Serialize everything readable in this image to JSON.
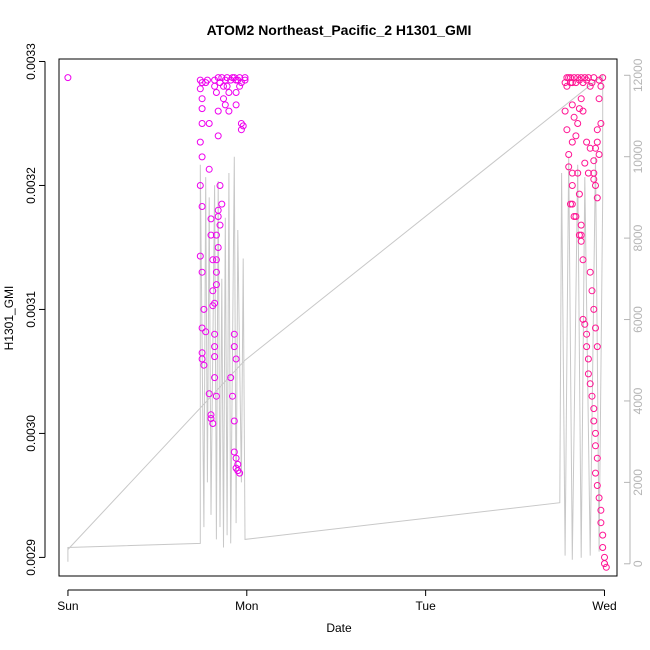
{
  "chart_data": {
    "type": "scatter",
    "title": "ATOM2 Northeast_Pacific_2 H1301_GMI",
    "xlabel": "Date",
    "ylabel": "H1301_GMI",
    "x_ticks": [
      "Sun",
      "Mon",
      "Tue",
      "Wed"
    ],
    "x_range_days": [
      -0.05,
      3.07
    ],
    "y_left": {
      "ticks": [
        "0.0029",
        "0.0030",
        "0.0031",
        "0.0032",
        "0.0033"
      ],
      "tick_values": [
        0.0029,
        0.003,
        0.0031,
        0.0032,
        0.0033
      ],
      "range": [
        0.002885,
        0.003302
      ]
    },
    "y_right": {
      "ticks": [
        "0",
        "2000",
        "4000",
        "6000",
        "8000",
        "10000",
        "12000"
      ],
      "tick_values": [
        0,
        2000,
        4000,
        6000,
        8000,
        10000,
        12000
      ],
      "range": [
        -300,
        12400
      ]
    },
    "colors": {
      "points": "#ee00ee",
      "points_late": "#ff1493",
      "altitude_line": "#c8c8c8"
    },
    "series": [
      {
        "role": "points",
        "axis": "left",
        "points": [
          [
            0.0,
            0.003287
          ],
          [
            0.74,
            0.003285
          ],
          [
            0.74,
            0.003278
          ],
          [
            0.75,
            0.003283
          ],
          [
            0.75,
            0.00327
          ],
          [
            0.75,
            0.003262
          ],
          [
            0.75,
            0.00325
          ],
          [
            0.74,
            0.003235
          ],
          [
            0.75,
            0.003223
          ],
          [
            0.74,
            0.0032
          ],
          [
            0.75,
            0.003183
          ],
          [
            0.74,
            0.003143
          ],
          [
            0.75,
            0.00313
          ],
          [
            0.76,
            0.0031
          ],
          [
            0.75,
            0.003085
          ],
          [
            0.75,
            0.003065
          ],
          [
            0.75,
            0.00306
          ],
          [
            0.76,
            0.003055
          ],
          [
            0.77,
            0.003082
          ],
          [
            0.77,
            0.003283
          ],
          [
            0.78,
            0.003285
          ],
          [
            0.79,
            0.00325
          ],
          [
            0.79,
            0.003213
          ],
          [
            0.8,
            0.003173
          ],
          [
            0.8,
            0.00316
          ],
          [
            0.81,
            0.00314
          ],
          [
            0.81,
            0.003115
          ],
          [
            0.81,
            0.003103
          ],
          [
            0.79,
            0.003032
          ],
          [
            0.8,
            0.003015
          ],
          [
            0.8,
            0.003012
          ],
          [
            0.81,
            0.003008
          ],
          [
            0.82,
            0.00328
          ],
          [
            0.82,
            0.003285
          ],
          [
            0.83,
            0.003275
          ],
          [
            0.84,
            0.00326
          ],
          [
            0.84,
            0.00324
          ],
          [
            0.85,
            0.0032
          ],
          [
            0.86,
            0.003185
          ],
          [
            0.84,
            0.00318
          ],
          [
            0.84,
            0.003175
          ],
          [
            0.85,
            0.003168
          ],
          [
            0.83,
            0.00316
          ],
          [
            0.84,
            0.00315
          ],
          [
            0.83,
            0.00314
          ],
          [
            0.83,
            0.00313
          ],
          [
            0.83,
            0.00312
          ],
          [
            0.82,
            0.003105
          ],
          [
            0.82,
            0.00308
          ],
          [
            0.82,
            0.00307
          ],
          [
            0.82,
            0.003062
          ],
          [
            0.82,
            0.003045
          ],
          [
            0.83,
            0.00303
          ],
          [
            0.84,
            0.003287
          ],
          [
            0.85,
            0.003283
          ],
          [
            0.86,
            0.003287
          ],
          [
            0.87,
            0.00328
          ],
          [
            0.87,
            0.00327
          ],
          [
            0.88,
            0.003265
          ],
          [
            0.88,
            0.003285
          ],
          [
            0.89,
            0.003287
          ],
          [
            0.89,
            0.00328
          ],
          [
            0.9,
            0.003275
          ],
          [
            0.9,
            0.00326
          ],
          [
            0.91,
            0.003285
          ],
          [
            0.92,
            0.003287
          ],
          [
            0.93,
            0.003287
          ],
          [
            0.94,
            0.003285
          ],
          [
            0.94,
            0.003275
          ],
          [
            0.94,
            0.003265
          ],
          [
            0.95,
            0.003285
          ],
          [
            0.96,
            0.003287
          ],
          [
            0.96,
            0.00328
          ],
          [
            0.97,
            0.003283
          ],
          [
            0.97,
            0.00325
          ],
          [
            0.97,
            0.003245
          ],
          [
            0.98,
            0.003248
          ],
          [
            0.99,
            0.003285
          ],
          [
            0.99,
            0.003287
          ],
          [
            0.91,
            0.003045
          ],
          [
            0.92,
            0.00303
          ],
          [
            0.93,
            0.00301
          ],
          [
            0.93,
            0.002985
          ],
          [
            0.94,
            0.00298
          ],
          [
            0.95,
            0.002975
          ],
          [
            0.94,
            0.002972
          ],
          [
            0.95,
            0.00297
          ],
          [
            0.96,
            0.002968
          ],
          [
            0.93,
            0.00308
          ],
          [
            0.93,
            0.00307
          ],
          [
            0.94,
            0.00306
          ],
          [
            2.78,
            0.003283
          ],
          [
            2.79,
            0.003287
          ],
          [
            2.79,
            0.00328
          ],
          [
            2.8,
            0.003287
          ],
          [
            2.81,
            0.003283
          ],
          [
            2.81,
            0.003287
          ],
          [
            2.82,
            0.003283
          ],
          [
            2.83,
            0.003287
          ],
          [
            2.84,
            0.003283
          ],
          [
            2.85,
            0.003287
          ],
          [
            2.86,
            0.003285
          ],
          [
            2.87,
            0.003287
          ],
          [
            2.88,
            0.003283
          ],
          [
            2.89,
            0.003287
          ],
          [
            2.9,
            0.003285
          ],
          [
            2.91,
            0.003287
          ],
          [
            2.92,
            0.00328
          ],
          [
            2.93,
            0.003283
          ],
          [
            2.94,
            0.003287
          ],
          [
            2.78,
            0.00326
          ],
          [
            2.79,
            0.003245
          ],
          [
            2.8,
            0.003225
          ],
          [
            2.8,
            0.003215
          ],
          [
            2.82,
            0.003235
          ],
          [
            2.82,
            0.00321
          ],
          [
            2.82,
            0.003265
          ],
          [
            2.83,
            0.003255
          ],
          [
            2.84,
            0.00324
          ],
          [
            2.85,
            0.00325
          ],
          [
            2.86,
            0.003262
          ],
          [
            2.87,
            0.00327
          ],
          [
            2.88,
            0.00326
          ],
          [
            2.81,
            0.003185
          ],
          [
            2.82,
            0.003185
          ],
          [
            2.82,
            0.0032
          ],
          [
            2.83,
            0.003175
          ],
          [
            2.84,
            0.003175
          ],
          [
            2.85,
            0.00321
          ],
          [
            2.86,
            0.003193
          ],
          [
            2.87,
            0.003168
          ],
          [
            2.87,
            0.00316
          ],
          [
            2.87,
            0.003155
          ],
          [
            2.86,
            0.00316
          ],
          [
            2.88,
            0.00314
          ],
          [
            2.89,
            0.003218
          ],
          [
            2.9,
            0.003235
          ],
          [
            2.91,
            0.00321
          ],
          [
            2.92,
            0.00323
          ],
          [
            2.94,
            0.00322
          ],
          [
            2.94,
            0.00321
          ],
          [
            2.94,
            0.003205
          ],
          [
            2.95,
            0.0032
          ],
          [
            2.95,
            0.00323
          ],
          [
            2.96,
            0.003235
          ],
          [
            2.96,
            0.003245
          ],
          [
            2.97,
            0.00327
          ],
          [
            2.97,
            0.003285
          ],
          [
            2.98,
            0.00328
          ],
          [
            2.99,
            0.003287
          ],
          [
            2.98,
            0.00325
          ],
          [
            2.97,
            0.003225
          ],
          [
            2.96,
            0.00319
          ],
          [
            2.88,
            0.003092
          ],
          [
            2.89,
            0.003088
          ],
          [
            2.9,
            0.00308
          ],
          [
            2.9,
            0.00307
          ],
          [
            2.91,
            0.00306
          ],
          [
            2.91,
            0.003048
          ],
          [
            2.92,
            0.00304
          ],
          [
            2.93,
            0.00303
          ],
          [
            2.94,
            0.00302
          ],
          [
            2.94,
            0.00301
          ],
          [
            2.95,
            0.003
          ],
          [
            2.95,
            0.00299
          ],
          [
            2.96,
            0.00298
          ],
          [
            2.95,
            0.002968
          ],
          [
            2.96,
            0.002958
          ],
          [
            2.97,
            0.002948
          ],
          [
            2.98,
            0.002938
          ],
          [
            2.98,
            0.002928
          ],
          [
            2.99,
            0.002918
          ],
          [
            2.99,
            0.002908
          ],
          [
            3.0,
            0.0029
          ],
          [
            3.0,
            0.002895
          ],
          [
            3.01,
            0.002892
          ],
          [
            2.92,
            0.00313
          ],
          [
            2.93,
            0.003115
          ],
          [
            2.94,
            0.0031
          ],
          [
            2.95,
            0.003085
          ],
          [
            2.96,
            0.00307
          ]
        ]
      },
      {
        "role": "altitude_line",
        "axis": "right",
        "points": [
          [
            0.0,
            50
          ],
          [
            0.0,
            400
          ],
          [
            0.74,
            500
          ],
          [
            0.74,
            9800
          ],
          [
            0.76,
            900
          ],
          [
            0.77,
            9500
          ],
          [
            0.78,
            2000
          ],
          [
            0.79,
            9000
          ],
          [
            0.8,
            1200
          ],
          [
            0.82,
            9300
          ],
          [
            0.83,
            600
          ],
          [
            0.84,
            9400
          ],
          [
            0.85,
            900
          ],
          [
            0.86,
            7000
          ],
          [
            0.87,
            400
          ],
          [
            0.88,
            8500
          ],
          [
            0.89,
            700
          ],
          [
            0.9,
            9600
          ],
          [
            0.91,
            500
          ],
          [
            0.93,
            10000
          ],
          [
            0.94,
            1000
          ],
          [
            0.95,
            8200
          ],
          [
            0.97,
            2000
          ],
          [
            0.98,
            7500
          ],
          [
            0.99,
            600
          ],
          [
            2.75,
            1500
          ],
          [
            2.76,
            9600
          ],
          [
            2.78,
            200
          ],
          [
            2.8,
            10000
          ],
          [
            2.82,
            100
          ],
          [
            2.85,
            9800
          ],
          [
            2.87,
            150
          ],
          [
            2.89,
            9500
          ],
          [
            2.92,
            200
          ],
          [
            2.95,
            10000
          ],
          [
            2.97,
            300
          ],
          [
            2.99,
            9000
          ],
          [
            2.99,
            12000
          ],
          [
            0.99,
            5000
          ],
          [
            0.0,
            350
          ]
        ]
      }
    ]
  }
}
